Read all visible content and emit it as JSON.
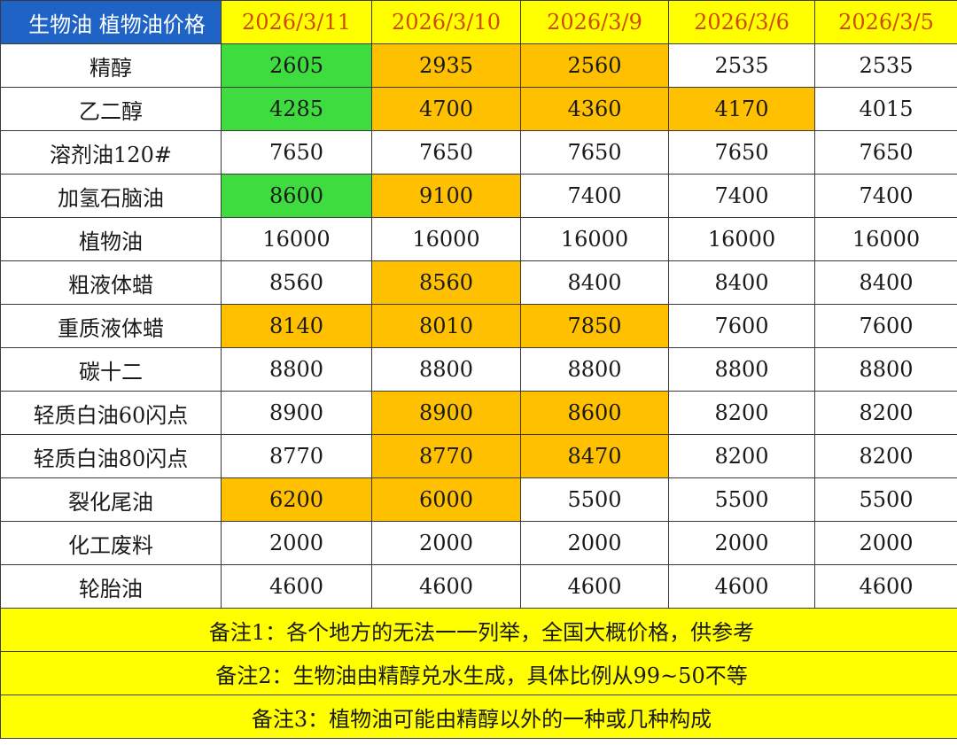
{
  "table": {
    "corner_label": "生物油 植物油价格",
    "dates": [
      "2026/3/11",
      "2026/3/10",
      "2026/3/9",
      "2026/3/6",
      "2026/3/5"
    ],
    "colors": {
      "up": "#ffc000",
      "down": "#3fdc3f",
      "flat": "#ffffff",
      "header": "#1f63c6",
      "date_bg": "#ffff00"
    },
    "rows": [
      {
        "name": "精醇",
        "values": [
          "2605",
          "2935",
          "2560",
          "2535",
          "2535"
        ],
        "states": [
          "down",
          "up",
          "up",
          "flat",
          "flat"
        ]
      },
      {
        "name": "乙二醇",
        "values": [
          "4285",
          "4700",
          "4360",
          "4170",
          "4015"
        ],
        "states": [
          "down",
          "up",
          "up",
          "up",
          "flat"
        ]
      },
      {
        "name": "溶剂油120#",
        "values": [
          "7650",
          "7650",
          "7650",
          "7650",
          "7650"
        ],
        "states": [
          "flat",
          "flat",
          "flat",
          "flat",
          "flat"
        ]
      },
      {
        "name": "加氢石脑油",
        "values": [
          "8600",
          "9100",
          "7400",
          "7400",
          "7400"
        ],
        "states": [
          "down",
          "up",
          "flat",
          "flat",
          "flat"
        ]
      },
      {
        "name": "植物油",
        "values": [
          "16000",
          "16000",
          "16000",
          "16000",
          "16000"
        ],
        "states": [
          "flat",
          "flat",
          "flat",
          "flat",
          "flat"
        ]
      },
      {
        "name": "粗液体蜡",
        "values": [
          "8560",
          "8560",
          "8400",
          "8400",
          "8400"
        ],
        "states": [
          "flat",
          "up",
          "flat",
          "flat",
          "flat"
        ]
      },
      {
        "name": "重质液体蜡",
        "values": [
          "8140",
          "8010",
          "7850",
          "7600",
          "7600"
        ],
        "states": [
          "up",
          "up",
          "up",
          "flat",
          "flat"
        ]
      },
      {
        "name": "碳十二",
        "values": [
          "8800",
          "8800",
          "8800",
          "8800",
          "8800"
        ],
        "states": [
          "flat",
          "flat",
          "flat",
          "flat",
          "flat"
        ]
      },
      {
        "name": "轻质白油60闪点",
        "values": [
          "8900",
          "8900",
          "8600",
          "8200",
          "8200"
        ],
        "states": [
          "flat",
          "up",
          "up",
          "flat",
          "flat"
        ]
      },
      {
        "name": "轻质白油80闪点",
        "values": [
          "8770",
          "8770",
          "8470",
          "8200",
          "8200"
        ],
        "states": [
          "flat",
          "up",
          "up",
          "flat",
          "flat"
        ]
      },
      {
        "name": "裂化尾油",
        "values": [
          "6200",
          "6000",
          "5500",
          "5500",
          "5500"
        ],
        "states": [
          "up",
          "up",
          "flat",
          "flat",
          "flat"
        ]
      },
      {
        "name": "化工废料",
        "values": [
          "2000",
          "2000",
          "2000",
          "2000",
          "2000"
        ],
        "states": [
          "flat",
          "flat",
          "flat",
          "flat",
          "flat"
        ]
      },
      {
        "name": "轮胎油",
        "values": [
          "4600",
          "4600",
          "4600",
          "4600",
          "4600"
        ],
        "states": [
          "flat",
          "flat",
          "flat",
          "flat",
          "flat"
        ]
      }
    ],
    "notes": [
      "备注1：各个地方的无法一一列举，全国大概价格，供参考",
      "备注2：生物油由精醇兑水生成，具体比例从99~50不等",
      "备注3：植物油可能由精醇以外的一种或几种构成"
    ]
  }
}
